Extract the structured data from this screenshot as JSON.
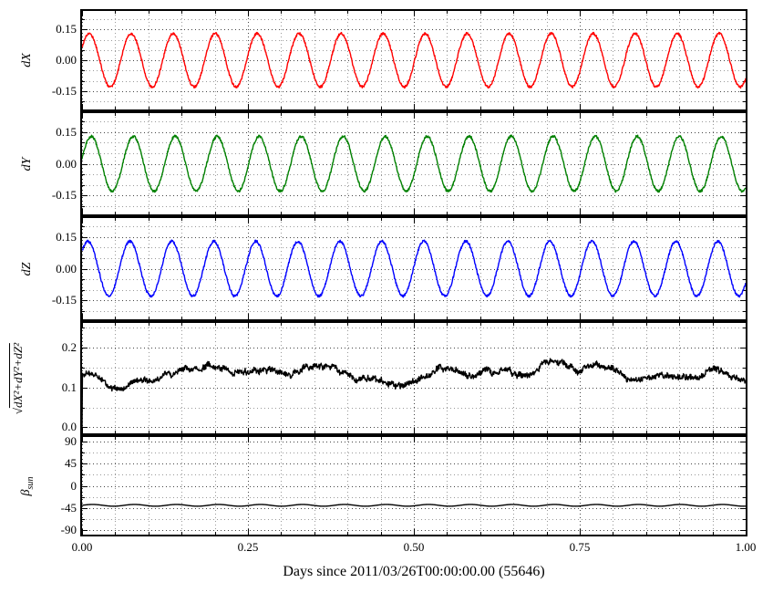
{
  "figure": {
    "background": "#ffffff"
  },
  "chart_data": {
    "type": "line",
    "xlabel": "Days since 2011/03/26T00:00:00.00 (55646)",
    "x": {
      "min": 0,
      "max": 1,
      "ticks": [
        0,
        0.25,
        0.5,
        0.75,
        1
      ],
      "tick_labels": [
        "0.00",
        "0.25",
        "0.50",
        "0.75",
        "1.00"
      ],
      "minor_step": 0.05
    },
    "grid": {
      "style": "dotted",
      "major_color": "#444444",
      "minor_color": "#999999"
    },
    "subplots": [
      {
        "id": "dX",
        "ylabel": "dX",
        "color": "#ff0000",
        "ylim": [
          -0.24,
          0.24
        ],
        "yticks": [
          -0.15,
          0,
          0.15
        ],
        "ytick_labels": [
          "-0.15",
          "0.00",
          "0.15"
        ],
        "yminor_step": 0.05,
        "signal": {
          "kind": "sine",
          "cycles": 15.8,
          "amplitude": 0.13,
          "mean": 0,
          "phase": 0.5,
          "noise": 0.006
        }
      },
      {
        "id": "dY",
        "ylabel": "dY",
        "color": "#008000",
        "ylim": [
          -0.24,
          0.24
        ],
        "yticks": [
          -0.15,
          0,
          0.15
        ],
        "ytick_labels": [
          "-0.15",
          "0.00",
          "0.15"
        ],
        "yminor_step": 0.05,
        "signal": {
          "kind": "sine",
          "cycles": 15.8,
          "amplitude": 0.13,
          "mean": 0,
          "phase": 0.2,
          "noise": 0.006
        }
      },
      {
        "id": "dZ",
        "ylabel": "dZ",
        "color": "#0000ff",
        "ylim": [
          -0.24,
          0.24
        ],
        "yticks": [
          -0.15,
          0,
          0.15
        ],
        "ytick_labels": [
          "-0.15",
          "0.00",
          "0.15"
        ],
        "yminor_step": 0.05,
        "signal": {
          "kind": "sine",
          "cycles": 15.8,
          "amplitude": 0.13,
          "mean": 0,
          "phase": 0.7,
          "noise": 0.006
        }
      },
      {
        "id": "mag",
        "ylabel": "√dX²+dY²+dZ²",
        "color": "#000000",
        "ylim": [
          -0.015,
          0.262
        ],
        "yticks": [
          0,
          0.1,
          0.2
        ],
        "ytick_labels": [
          "0.0",
          "0.1",
          "0.2"
        ],
        "yminor_step": 0.05,
        "signal": {
          "kind": "noisy-flat",
          "mean": 0.135,
          "jitter": 0.012,
          "start_at_zero": true
        }
      },
      {
        "id": "beta",
        "ylabel": "β_sun",
        "color": "#000000",
        "ylim": [
          -100,
          100
        ],
        "yticks": [
          -90,
          -45,
          0,
          45,
          90
        ],
        "ytick_labels": [
          "-90",
          "-45",
          "0",
          "45",
          "90"
        ],
        "yminor_step": 22.5,
        "signal": {
          "kind": "ripple",
          "mean": -40,
          "amplitude": 1.8,
          "cycles": 15.8
        }
      }
    ]
  }
}
